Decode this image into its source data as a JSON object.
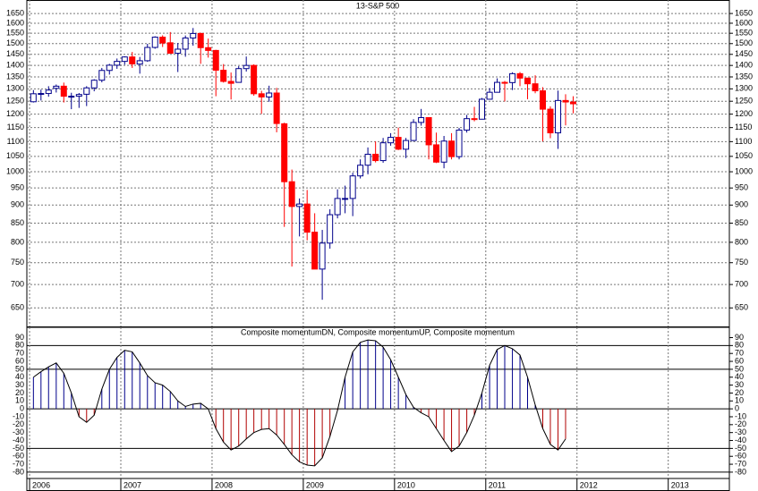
{
  "chart_data": [
    {
      "type": "candlestick",
      "title": "13-S&P 500",
      "up_color": "#ffffff",
      "up_stroke": "#00008b",
      "down_color": "#ff0000",
      "log_scale": true,
      "grid": true,
      "xlim": [
        2005.97,
        2013.67
      ],
      "xticks": [
        2006,
        2007,
        2008,
        2009,
        2010,
        2011,
        2012,
        2013
      ],
      "ylim": [
        613,
        1722
      ],
      "yticks": [
        650,
        700,
        750,
        800,
        850,
        900,
        950,
        1000,
        1050,
        1100,
        1150,
        1200,
        1250,
        1300,
        1350,
        1400,
        1450,
        1500,
        1550,
        1600,
        1650
      ],
      "x": [
        2006.042,
        2006.125,
        2006.208,
        2006.292,
        2006.375,
        2006.458,
        2006.542,
        2006.625,
        2006.708,
        2006.792,
        2006.875,
        2006.958,
        2007.042,
        2007.125,
        2007.208,
        2007.292,
        2007.375,
        2007.458,
        2007.542,
        2007.625,
        2007.708,
        2007.792,
        2007.875,
        2007.958,
        2008.042,
        2008.125,
        2008.208,
        2008.292,
        2008.375,
        2008.458,
        2008.542,
        2008.625,
        2008.708,
        2008.792,
        2008.875,
        2008.958,
        2009.042,
        2009.125,
        2009.208,
        2009.292,
        2009.375,
        2009.458,
        2009.542,
        2009.625,
        2009.708,
        2009.792,
        2009.875,
        2009.958,
        2010.042,
        2010.125,
        2010.208,
        2010.292,
        2010.375,
        2010.458,
        2010.542,
        2010.625,
        2010.708,
        2010.792,
        2010.875,
        2010.958,
        2011.042,
        2011.125,
        2011.208,
        2011.292,
        2011.375,
        2011.458,
        2011.542,
        2011.625,
        2011.708,
        2011.792,
        2011.875,
        2011.958
      ],
      "open": [
        1248,
        1280,
        1281,
        1302,
        1311,
        1270,
        1270,
        1278,
        1304,
        1336,
        1378,
        1401,
        1418,
        1438,
        1406,
        1421,
        1482,
        1531,
        1504,
        1455,
        1474,
        1527,
        1549,
        1481,
        1468,
        1379,
        1331,
        1327,
        1386,
        1400,
        1280,
        1267,
        1283,
        1164,
        969,
        896,
        903,
        826,
        735,
        798,
        873,
        919,
        919,
        987,
        1021,
        1057,
        1036,
        1096,
        1115,
        1074,
        1104,
        1169,
        1187,
        1089,
        1031,
        1102,
        1049,
        1141,
        1183,
        1181,
        1258,
        1286,
        1327,
        1326,
        1364,
        1345,
        1321,
        1292,
        1219,
        1131,
        1253,
        1247
      ],
      "high": [
        1295,
        1297,
        1311,
        1318,
        1326,
        1284,
        1283,
        1311,
        1340,
        1389,
        1407,
        1431,
        1441,
        1461,
        1438,
        1499,
        1535,
        1540,
        1556,
        1503,
        1539,
        1576,
        1553,
        1524,
        1471,
        1406,
        1369,
        1397,
        1440,
        1405,
        1292,
        1313,
        1304,
        1168,
        1007,
        919,
        944,
        877,
        832,
        888,
        946,
        957,
        997,
        1040,
        1080,
        1101,
        1113,
        1130,
        1150,
        1113,
        1181,
        1220,
        1188,
        1132,
        1120,
        1130,
        1149,
        1197,
        1228,
        1263,
        1303,
        1344,
        1333,
        1370,
        1371,
        1345,
        1357,
        1307,
        1230,
        1293,
        1278,
        1270
      ],
      "low": [
        1245,
        1253,
        1268,
        1285,
        1245,
        1219,
        1224,
        1231,
        1290,
        1327,
        1360,
        1385,
        1403,
        1389,
        1364,
        1416,
        1476,
        1484,
        1454,
        1371,
        1439,
        1490,
        1407,
        1435,
        1270,
        1326,
        1257,
        1327,
        1373,
        1272,
        1201,
        1248,
        1133,
        840,
        741,
        815,
        805,
        735,
        667,
        784,
        863,
        877,
        869,
        979,
        992,
        1030,
        1029,
        1086,
        1071,
        1044,
        1102,
        1157,
        1040,
        1028,
        1011,
        1040,
        1040,
        1132,
        1173,
        1180,
        1257,
        1286,
        1249,
        1295,
        1311,
        1258,
        1282,
        1101,
        1112,
        1075,
        1158,
        1203
      ],
      "close": [
        1280,
        1281,
        1295,
        1311,
        1270,
        1270,
        1277,
        1304,
        1336,
        1378,
        1401,
        1418,
        1438,
        1407,
        1421,
        1482,
        1531,
        1503,
        1455,
        1474,
        1527,
        1549,
        1481,
        1468,
        1379,
        1331,
        1323,
        1386,
        1400,
        1280,
        1267,
        1283,
        1165,
        969,
        896,
        903,
        826,
        735,
        798,
        873,
        919,
        919,
        987,
        1021,
        1057,
        1036,
        1096,
        1115,
        1074,
        1104,
        1169,
        1187,
        1089,
        1031,
        1102,
        1049,
        1141,
        1183,
        1181,
        1258,
        1286,
        1327,
        1326,
        1364,
        1345,
        1321,
        1292,
        1219,
        1131,
        1253,
        1247,
        1240
      ]
    },
    {
      "type": "momentum",
      "title": "Composite momentumDN, Composite momentumUP, Composite momentum",
      "up_color": "#00008b",
      "down_color": "#b00000",
      "line_color": "#000000",
      "xlim": [
        2005.97,
        2013.67
      ],
      "xticks": [
        2006,
        2007,
        2008,
        2009,
        2010,
        2011,
        2012,
        2013
      ],
      "ylim": [
        -88,
        103
      ],
      "yticks": [
        -80,
        -70,
        -60,
        -50,
        -40,
        -30,
        -20,
        -10,
        0,
        10,
        20,
        30,
        40,
        50,
        60,
        70,
        80,
        90
      ],
      "hlines": [
        80,
        50,
        0,
        -50,
        -80
      ],
      "x": [
        2006.042,
        2006.125,
        2006.208,
        2006.292,
        2006.375,
        2006.458,
        2006.542,
        2006.625,
        2006.708,
        2006.792,
        2006.875,
        2006.958,
        2007.042,
        2007.125,
        2007.208,
        2007.292,
        2007.375,
        2007.458,
        2007.542,
        2007.625,
        2007.708,
        2007.792,
        2007.875,
        2007.958,
        2008.042,
        2008.125,
        2008.208,
        2008.292,
        2008.375,
        2008.458,
        2008.542,
        2008.625,
        2008.708,
        2008.792,
        2008.875,
        2008.958,
        2009.042,
        2009.125,
        2009.208,
        2009.292,
        2009.375,
        2009.458,
        2009.542,
        2009.625,
        2009.708,
        2009.792,
        2009.875,
        2009.958,
        2010.042,
        2010.125,
        2010.208,
        2010.292,
        2010.375,
        2010.458,
        2010.542,
        2010.625,
        2010.708,
        2010.792,
        2010.875,
        2010.958,
        2011.042,
        2011.125,
        2011.208,
        2011.292,
        2011.375,
        2011.458,
        2011.542,
        2011.625,
        2011.708,
        2011.792,
        2011.875
      ],
      "values": [
        40,
        47,
        53,
        58,
        45,
        20,
        -10,
        -17,
        -8,
        25,
        50,
        65,
        74,
        72,
        58,
        42,
        33,
        30,
        22,
        10,
        3,
        6,
        7,
        0,
        -25,
        -42,
        -52,
        -47,
        -38,
        -30,
        -26,
        -25,
        -33,
        -45,
        -58,
        -67,
        -71,
        -72,
        -62,
        -35,
        -2,
        40,
        72,
        84,
        87,
        86,
        78,
        62,
        40,
        18,
        2,
        -5,
        -10,
        -25,
        -40,
        -54,
        -47,
        -30,
        -8,
        20,
        55,
        75,
        80,
        76,
        68,
        40,
        5,
        -25,
        -45,
        -52,
        -38
      ]
    }
  ]
}
